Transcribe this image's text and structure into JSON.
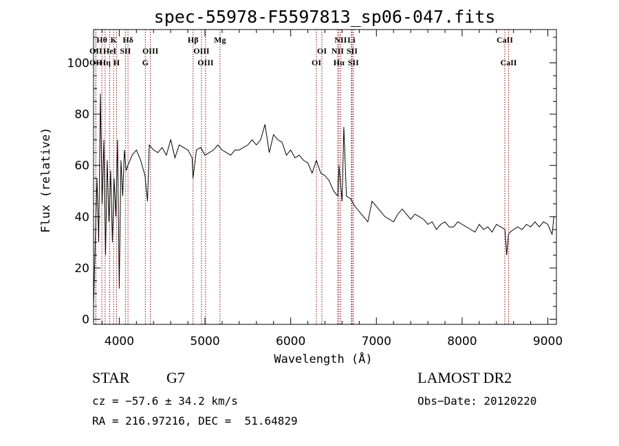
{
  "chart_data": {
    "type": "line",
    "title": "spec-55978-F5597813_sp06-047.fits",
    "xlabel": "Wavelength (Å)",
    "ylabel": "Flux (relative)",
    "xlim": [
      3700,
      9100
    ],
    "ylim": [
      -2,
      113
    ],
    "xticks": [
      4000,
      5000,
      6000,
      7000,
      8000,
      9000
    ],
    "yticks": [
      0,
      20,
      40,
      60,
      80,
      100
    ],
    "grid": false,
    "line_color": "#000000",
    "marker_color": "#8b0000",
    "series": [
      {
        "x": [
          3700,
          3720,
          3740,
          3760,
          3780,
          3800,
          3820,
          3840,
          3860,
          3880,
          3900,
          3920,
          3940,
          3960,
          3980,
          4000,
          4020,
          4040,
          4060,
          4080,
          4100,
          4150,
          4200,
          4250,
          4300,
          4330,
          4350,
          4400,
          4450,
          4500,
          4550,
          4600,
          4650,
          4700,
          4750,
          4800,
          4850,
          4860,
          4900,
          4950,
          5000,
          5050,
          5100,
          5150,
          5200,
          5250,
          5300,
          5350,
          5400,
          5450,
          5500,
          5550,
          5600,
          5650,
          5700,
          5750,
          5800,
          5850,
          5900,
          5950,
          6000,
          6050,
          6100,
          6150,
          6200,
          6250,
          6300,
          6350,
          6400,
          6450,
          6500,
          6550,
          6563,
          6600,
          6620,
          6650,
          6700,
          6750,
          6800,
          6850,
          6900,
          6950,
          7000,
          7050,
          7100,
          7150,
          7200,
          7250,
          7300,
          7350,
          7400,
          7450,
          7500,
          7550,
          7600,
          7650,
          7700,
          7750,
          7800,
          7850,
          7900,
          7950,
          8000,
          8050,
          8100,
          8150,
          8200,
          8250,
          8300,
          8350,
          8400,
          8450,
          8500,
          8520,
          8540,
          8560,
          8600,
          8650,
          8700,
          8750,
          8800,
          8850,
          8900,
          8950,
          9000,
          9050,
          9070
        ],
        "y": [
          5,
          30,
          55,
          30,
          88,
          45,
          70,
          25,
          62,
          38,
          58,
          30,
          55,
          40,
          70,
          12,
          62,
          48,
          66,
          58,
          60,
          64,
          66,
          62,
          56,
          46,
          68,
          66,
          65,
          67,
          64,
          70,
          63,
          68,
          67,
          66,
          63,
          55,
          66,
          67,
          64,
          65,
          66,
          68,
          66,
          65,
          64,
          66,
          66,
          67,
          68,
          70,
          68,
          70,
          76,
          65,
          72,
          70,
          69,
          64,
          66,
          63,
          64,
          62,
          61,
          57,
          62,
          57,
          56,
          54,
          50,
          48,
          60,
          46,
          75,
          48,
          47,
          44,
          42,
          40,
          38,
          46,
          44,
          42,
          40,
          39,
          38,
          41,
          43,
          41,
          39,
          41,
          40,
          39,
          37,
          38,
          35,
          37,
          38,
          36,
          36,
          38,
          37,
          36,
          35,
          34,
          37,
          35,
          36,
          34,
          37,
          36,
          35,
          25,
          33,
          34,
          35,
          36,
          35,
          37,
          36,
          38,
          36,
          38,
          37,
          33,
          40
        ]
      }
    ],
    "lines": [
      {
        "label": "Hθ",
        "x": 3797,
        "row": 1,
        "bold": true
      },
      {
        "label": "OII",
        "x": 3727,
        "row": 2,
        "bold": true
      },
      {
        "label": "OII",
        "x": 3727,
        "row": 3,
        "bold": true
      },
      {
        "label": "K",
        "x": 3934,
        "row": 1,
        "bold": true
      },
      {
        "label": "HeI",
        "x": 3889,
        "row": 2,
        "bold": true
      },
      {
        "label": "Hη",
        "x": 3835,
        "row": 3,
        "bold": true
      },
      {
        "label": "Hδ",
        "x": 4102,
        "row": 1,
        "bold": true
      },
      {
        "label": "SII",
        "x": 4072,
        "row": 2,
        "bold": true
      },
      {
        "label": "H",
        "x": 3968,
        "row": 3,
        "bold": true
      },
      {
        "label": "OIII",
        "x": 4363,
        "row": 2,
        "bold": true
      },
      {
        "label": "G",
        "x": 4304,
        "row": 3,
        "bold": true
      },
      {
        "label": "Hβ",
        "x": 4861,
        "row": 1,
        "bold": true
      },
      {
        "label": "OIII",
        "x": 4959,
        "row": 2,
        "bold": true
      },
      {
        "label": "OIII",
        "x": 5007,
        "row": 3,
        "bold": true
      },
      {
        "label": "Mg",
        "x": 5175,
        "row": 1,
        "bold": true
      },
      {
        "label": "OI",
        "x": 6364,
        "row": 2,
        "bold": true
      },
      {
        "label": "OI",
        "x": 6300,
        "row": 3,
        "bold": true
      },
      {
        "label": "NII",
        "x": 6583,
        "row": 1,
        "bold": true
      },
      {
        "label": "NII",
        "x": 6548,
        "row": 2,
        "bold": true
      },
      {
        "label": "Hα",
        "x": 6563,
        "row": 3,
        "bold": true
      },
      {
        "label": "Li",
        "x": 6708,
        "row": 1,
        "bold": true
      },
      {
        "label": "SII",
        "x": 6716,
        "row": 2,
        "bold": true
      },
      {
        "label": "SII",
        "x": 6731,
        "row": 3,
        "bold": true
      },
      {
        "label": "CaII",
        "x": 8498,
        "row": 1,
        "bold": true
      },
      {
        "label": "CaII",
        "x": 8542,
        "row": 3,
        "bold": true
      }
    ]
  },
  "info": {
    "class_label": "STAR",
    "subclass": "G7",
    "cz": "cz = −57.6 ± 34.2 km/s",
    "coords": "RA = 216.97216, DEC =  51.64829",
    "survey": "LAMOST DR2",
    "obs_date": "Obs−Date: 20120220"
  }
}
